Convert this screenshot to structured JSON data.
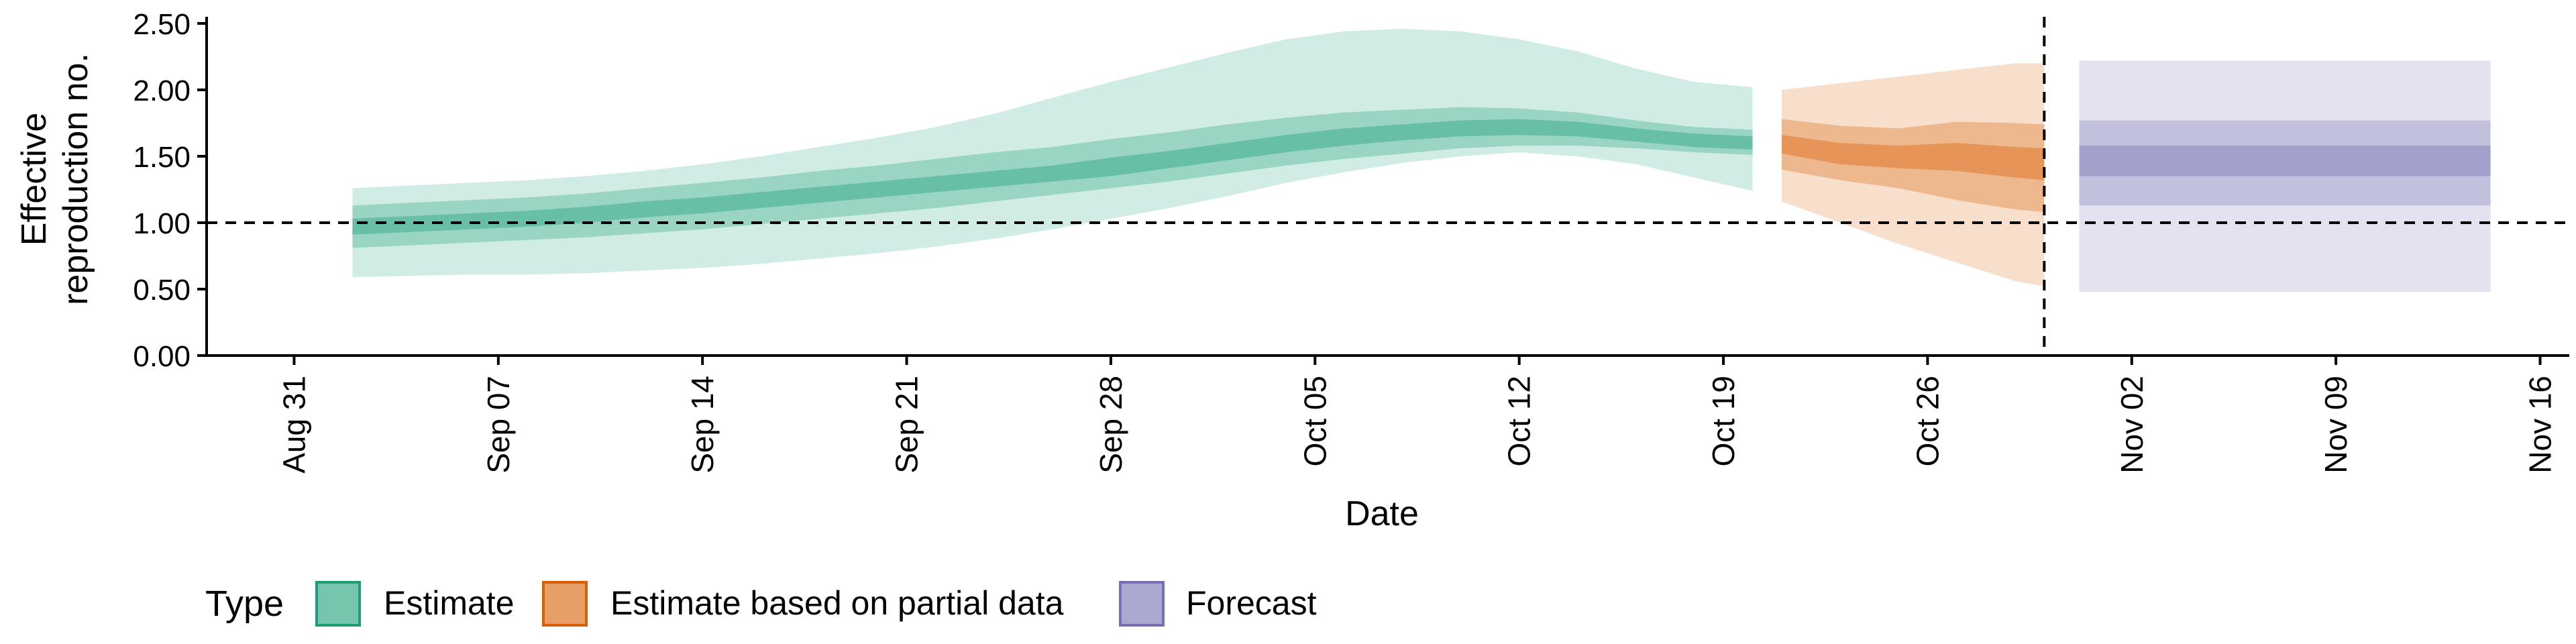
{
  "chart_data": {
    "type": "area",
    "title": "",
    "xlabel": "Date",
    "ylabel_lines": [
      "Effective",
      "reproduction no."
    ],
    "xlim": [
      "2020-08-28",
      "2020-11-17"
    ],
    "ylim": [
      0,
      2.55
    ],
    "y_ticks": [
      0,
      0.5,
      1.0,
      1.5,
      2.0,
      2.5
    ],
    "y_tick_labels": [
      "0.00",
      "0.50",
      "1.00",
      "1.50",
      "2.00",
      "2.50"
    ],
    "x_ticks": [
      "2020-08-31",
      "2020-09-07",
      "2020-09-14",
      "2020-09-21",
      "2020-09-28",
      "2020-10-05",
      "2020-10-12",
      "2020-10-19",
      "2020-10-26",
      "2020-11-02",
      "2020-11-09",
      "2020-11-16"
    ],
    "x_tick_labels": [
      "Aug 31",
      "Sep 07",
      "Sep 14",
      "Sep 21",
      "Sep 28",
      "Oct 05",
      "Oct 12",
      "Oct 19",
      "Oct 26",
      "Nov 02",
      "Nov 09",
      "Nov 16"
    ],
    "reference_line": {
      "y": 1.0,
      "style": "dashed"
    },
    "vertical_line": {
      "x": "2020-10-30",
      "style": "dashed"
    },
    "grid": false,
    "legend": {
      "position": "bottom-left",
      "title": "Type",
      "entries": [
        "Estimate",
        "Estimate based on partial data",
        "Forecast"
      ]
    },
    "colors": {
      "Estimate": "#1b9e77",
      "Estimate based on partial data": "#d95f02",
      "Forecast": "#7570b3"
    },
    "series": [
      {
        "name": "Estimate",
        "dates": [
          "2020-09-02",
          "2020-09-04",
          "2020-09-06",
          "2020-09-08",
          "2020-09-10",
          "2020-09-12",
          "2020-09-14",
          "2020-09-16",
          "2020-09-18",
          "2020-09-20",
          "2020-09-22",
          "2020-09-24",
          "2020-09-26",
          "2020-09-28",
          "2020-09-30",
          "2020-10-02",
          "2020-10-04",
          "2020-10-06",
          "2020-10-08",
          "2020-10-10",
          "2020-10-12",
          "2020-10-14",
          "2020-10-16",
          "2020-10-18",
          "2020-10-20"
        ],
        "median": [
          0.97,
          0.99,
          1.01,
          1.03,
          1.06,
          1.1,
          1.13,
          1.17,
          1.21,
          1.25,
          1.29,
          1.33,
          1.37,
          1.42,
          1.47,
          1.53,
          1.59,
          1.64,
          1.68,
          1.71,
          1.72,
          1.7,
          1.66,
          1.62,
          1.6
        ],
        "lower_50": [
          0.91,
          0.93,
          0.95,
          0.97,
          1.0,
          1.04,
          1.07,
          1.11,
          1.15,
          1.19,
          1.23,
          1.27,
          1.31,
          1.35,
          1.41,
          1.47,
          1.53,
          1.58,
          1.62,
          1.65,
          1.66,
          1.65,
          1.61,
          1.57,
          1.55
        ],
        "upper_50": [
          1.03,
          1.05,
          1.07,
          1.09,
          1.12,
          1.16,
          1.19,
          1.23,
          1.27,
          1.31,
          1.35,
          1.39,
          1.43,
          1.49,
          1.54,
          1.6,
          1.66,
          1.71,
          1.74,
          1.77,
          1.78,
          1.76,
          1.71,
          1.67,
          1.65
        ],
        "lower_90": [
          0.81,
          0.83,
          0.85,
          0.87,
          0.89,
          0.92,
          0.95,
          0.99,
          1.03,
          1.07,
          1.11,
          1.16,
          1.21,
          1.26,
          1.31,
          1.37,
          1.43,
          1.48,
          1.52,
          1.56,
          1.58,
          1.58,
          1.56,
          1.53,
          1.51
        ],
        "upper_90": [
          1.13,
          1.15,
          1.17,
          1.19,
          1.22,
          1.26,
          1.3,
          1.34,
          1.39,
          1.43,
          1.48,
          1.53,
          1.57,
          1.63,
          1.68,
          1.74,
          1.79,
          1.83,
          1.85,
          1.87,
          1.86,
          1.83,
          1.77,
          1.72,
          1.7
        ],
        "lower_ci": [
          0.59,
          0.6,
          0.61,
          0.61,
          0.62,
          0.64,
          0.66,
          0.69,
          0.73,
          0.77,
          0.82,
          0.88,
          0.95,
          1.03,
          1.11,
          1.2,
          1.3,
          1.38,
          1.45,
          1.5,
          1.53,
          1.5,
          1.44,
          1.34,
          1.24
        ],
        "upper_ci": [
          1.26,
          1.28,
          1.3,
          1.32,
          1.35,
          1.39,
          1.44,
          1.5,
          1.57,
          1.64,
          1.72,
          1.82,
          1.94,
          2.06,
          2.17,
          2.28,
          2.38,
          2.44,
          2.46,
          2.44,
          2.38,
          2.29,
          2.16,
          2.06,
          2.02
        ]
      },
      {
        "name": "Estimate based on partial data",
        "dates": [
          "2020-10-21",
          "2020-10-23",
          "2020-10-25",
          "2020-10-27",
          "2020-10-29",
          "2020-10-30"
        ],
        "median": [
          1.59,
          1.52,
          1.5,
          1.5,
          1.46,
          1.44
        ],
        "lower_50": [
          1.52,
          1.44,
          1.41,
          1.39,
          1.34,
          1.32
        ],
        "upper_50": [
          1.66,
          1.6,
          1.58,
          1.6,
          1.57,
          1.56
        ],
        "lower_90": [
          1.4,
          1.32,
          1.26,
          1.17,
          1.1,
          1.08
        ],
        "upper_90": [
          1.78,
          1.73,
          1.71,
          1.76,
          1.75,
          1.74
        ],
        "lower_ci": [
          1.16,
          1.0,
          0.84,
          0.7,
          0.56,
          0.52
        ],
        "upper_ci": [
          2.0,
          2.05,
          2.1,
          2.15,
          2.2,
          2.2
        ]
      },
      {
        "name": "Forecast",
        "dates": [
          "2020-10-31",
          "2020-11-14"
        ],
        "median": [
          1.5,
          1.5
        ],
        "lower_50": [
          1.35,
          1.35
        ],
        "upper_50": [
          1.58,
          1.58
        ],
        "lower_90": [
          1.13,
          1.13
        ],
        "upper_90": [
          1.77,
          1.77
        ],
        "lower_ci": [
          0.48,
          0.48
        ],
        "upper_ci": [
          2.22,
          2.22
        ]
      }
    ]
  }
}
